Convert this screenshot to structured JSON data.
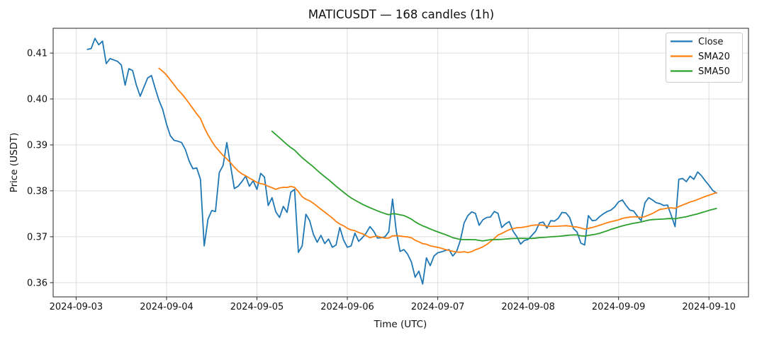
{
  "chart_data": {
    "type": "line",
    "title": "MATICUSDT — 168 candles (1h)",
    "xlabel": "Time (UTC)",
    "ylabel": "Price (USDT)",
    "n_points": 168,
    "grid": true,
    "legend_position": "upper right",
    "ylim": [
      0.3569,
      0.4154
    ],
    "xlim_index": [
      -9.1,
      175.5
    ],
    "x_tick_positions": [
      -3,
      21,
      45,
      69,
      93,
      117,
      141,
      165
    ],
    "x_tick_labels": [
      "2024-09-03",
      "2024-09-04",
      "2024-09-05",
      "2024-09-06",
      "2024-09-07",
      "2024-09-08",
      "2024-09-09",
      "2024-09-10"
    ],
    "y_tick_values": [
      0.36,
      0.37,
      0.38,
      0.39,
      0.4,
      0.41
    ],
    "y_tick_labels": [
      "0.36",
      "0.37",
      "0.38",
      "0.39",
      "0.40",
      "0.41"
    ],
    "series": [
      {
        "name": "Close",
        "color": "#1f77b4",
        "values": [
          0.4108,
          0.411,
          0.4132,
          0.4118,
          0.4126,
          0.4077,
          0.4088,
          0.4085,
          0.4082,
          0.4074,
          0.403,
          0.4066,
          0.4062,
          0.403,
          0.4006,
          0.4026,
          0.4046,
          0.4051,
          0.4023,
          0.3997,
          0.3977,
          0.3945,
          0.392,
          0.391,
          0.3908,
          0.3905,
          0.389,
          0.3865,
          0.3848,
          0.385,
          0.3825,
          0.368,
          0.3738,
          0.3757,
          0.3755,
          0.384,
          0.3855,
          0.3905,
          0.3855,
          0.3805,
          0.381,
          0.382,
          0.3832,
          0.381,
          0.3822,
          0.3803,
          0.3838,
          0.383,
          0.3768,
          0.3785,
          0.3754,
          0.3742,
          0.3766,
          0.3753,
          0.3797,
          0.3803,
          0.3666,
          0.368,
          0.3749,
          0.3735,
          0.3705,
          0.3688,
          0.3703,
          0.3685,
          0.3695,
          0.3677,
          0.3682,
          0.372,
          0.3693,
          0.3677,
          0.368,
          0.3708,
          0.369,
          0.3698,
          0.3708,
          0.3722,
          0.3712,
          0.3697,
          0.3698,
          0.37,
          0.3711,
          0.3782,
          0.3712,
          0.3668,
          0.3672,
          0.3662,
          0.3645,
          0.3612,
          0.3625,
          0.3597,
          0.3654,
          0.3637,
          0.3658,
          0.3665,
          0.3667,
          0.367,
          0.3672,
          0.3658,
          0.3668,
          0.3692,
          0.373,
          0.3746,
          0.3754,
          0.3751,
          0.3725,
          0.3737,
          0.3742,
          0.3743,
          0.3755,
          0.3751,
          0.372,
          0.3728,
          0.3733,
          0.3712,
          0.37,
          0.3684,
          0.3692,
          0.3694,
          0.3703,
          0.3712,
          0.373,
          0.3732,
          0.3719,
          0.3735,
          0.3734,
          0.374,
          0.3753,
          0.3752,
          0.3742,
          0.3718,
          0.371,
          0.3686,
          0.3682,
          0.3746,
          0.3735,
          0.3736,
          0.3744,
          0.375,
          0.3755,
          0.3758,
          0.3765,
          0.3776,
          0.378,
          0.3768,
          0.3758,
          0.3756,
          0.3745,
          0.3735,
          0.3774,
          0.3785,
          0.378,
          0.3774,
          0.3772,
          0.3768,
          0.3769,
          0.3746,
          0.3722,
          0.3825,
          0.3827,
          0.382,
          0.3832,
          0.3825,
          0.3841,
          0.3833,
          0.3822,
          0.3812,
          0.3801,
          0.3795
        ]
      },
      {
        "name": "SMA20",
        "color": "#ff7f0e",
        "derived_from": "Close",
        "sma_period": 20
      },
      {
        "name": "SMA50",
        "color": "#2ca02c",
        "derived_from": "Close",
        "sma_period": 50
      }
    ]
  }
}
